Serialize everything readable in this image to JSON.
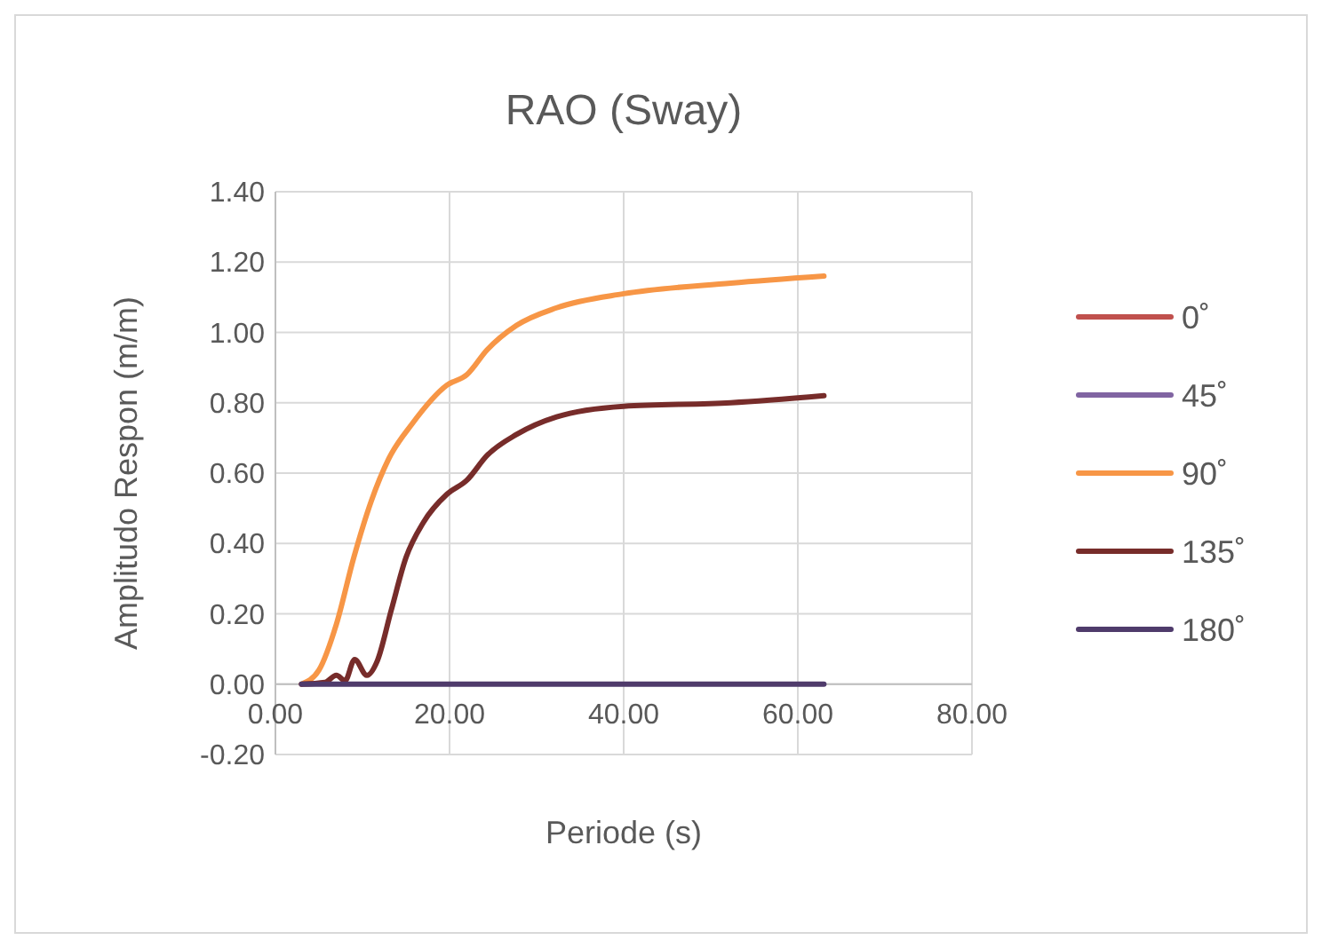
{
  "chart_data": {
    "type": "line",
    "title": "RAO (Sway)",
    "xlabel": "Periode (s)",
    "ylabel": "Amplitudo Respon (m/m)",
    "x": [
      3,
      5,
      7,
      9,
      11,
      13,
      15.7,
      19.7,
      22,
      24.3,
      27.7,
      32.3,
      40,
      52.3,
      63
    ],
    "series": [
      {
        "name": "0˚",
        "color": "#c0504d",
        "values": [
          null,
          null,
          null,
          null,
          null,
          null,
          null,
          null,
          null,
          null,
          null,
          null,
          null,
          null,
          null
        ]
      },
      {
        "name": "45˚",
        "color": "#8064a2",
        "values": [
          null,
          null,
          null,
          null,
          null,
          null,
          null,
          null,
          null,
          null,
          null,
          null,
          null,
          null,
          null
        ]
      },
      {
        "name": "90˚",
        "color": "#f79646",
        "values": [
          0,
          0.04,
          0.17,
          0.36,
          0.52,
          0.64,
          0.74,
          0.85,
          0.88,
          0.95,
          1.02,
          1.07,
          1.11,
          1.14,
          1.16
        ]
      },
      {
        "name": "135˚",
        "color": "#772c2a",
        "x": [
          3,
          5.7,
          7,
          8,
          9.1,
          10.5,
          11.7,
          13.3,
          15,
          17,
          19.7,
          22,
          24.3,
          27.7,
          32.3,
          40,
          52.3,
          63
        ],
        "values": [
          0,
          0.005,
          0.025,
          0.01,
          0.07,
          0.025,
          0.066,
          0.21,
          0.36,
          0.46,
          0.54,
          0.58,
          0.65,
          0.71,
          0.76,
          0.79,
          0.8,
          0.82
        ]
      },
      {
        "name": "180˚",
        "color": "#4f3b6b",
        "values": [
          0,
          0,
          0,
          0,
          0,
          0,
          0,
          0,
          0,
          0,
          0,
          0,
          0,
          0,
          0
        ]
      }
    ],
    "xlim": [
      0,
      80
    ],
    "xticks": [
      {
        "value": 0,
        "label": "0.00"
      },
      {
        "value": 20,
        "label": "20.00"
      },
      {
        "value": 40,
        "label": "40.00"
      },
      {
        "value": 60,
        "label": "60.00"
      },
      {
        "value": 80,
        "label": "80.00"
      }
    ],
    "ylim": [
      -0.2,
      1.4
    ],
    "yticks": [
      {
        "value": -0.2,
        "label": "-0.20"
      },
      {
        "value": 0,
        "label": "0.00"
      },
      {
        "value": 0.2,
        "label": "0.20"
      },
      {
        "value": 0.4,
        "label": "0.40"
      },
      {
        "value": 0.6,
        "label": "0.60"
      },
      {
        "value": 0.8,
        "label": "0.80"
      },
      {
        "value": 1,
        "label": "1.00"
      },
      {
        "value": 1.2,
        "label": "1.20"
      },
      {
        "value": 1.4,
        "label": "1.40"
      }
    ],
    "grid": true,
    "legend": "right",
    "marker": "none",
    "line_style": "solid"
  }
}
